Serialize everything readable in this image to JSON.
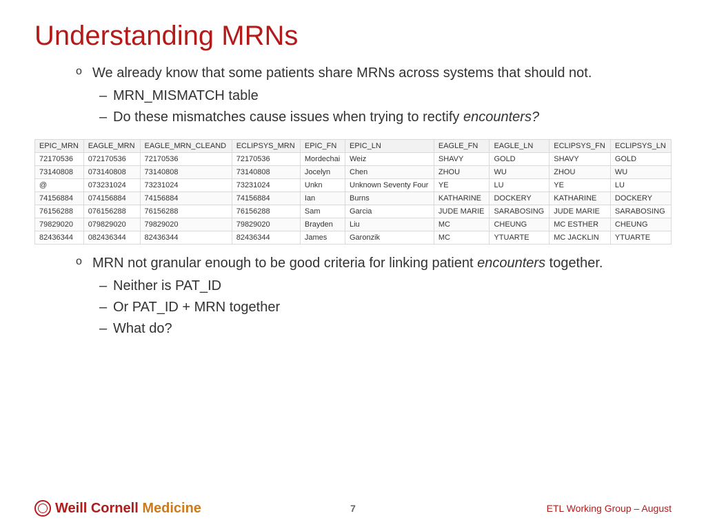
{
  "title": "Understanding MRNs",
  "bullets_top": {
    "main": "We already know that some patients share MRNs across systems that should not.",
    "sub1": "MRN_MISMATCH table",
    "sub2_pre": "Do these mismatches cause issues when trying to rectify ",
    "sub2_em": "encounters?"
  },
  "bullets_bottom": {
    "main_pre": "MRN not granular enough to be good criteria for linking patient ",
    "main_em": "encounters",
    "main_post": " together.",
    "sub1": "Neither is PAT_ID",
    "sub2": "Or PAT_ID + MRN together",
    "sub3": "What do?"
  },
  "table": {
    "columns": [
      "EPIC_MRN",
      "EAGLE_MRN",
      "EAGLE_MRN_CLEAND",
      "ECLIPSYS_MRN",
      "EPIC_FN",
      "EPIC_LN",
      "EAGLE_FN",
      "EAGLE_LN",
      "ECLIPSYS_FN",
      "ECLIPSYS_LN"
    ],
    "rows": [
      [
        "72170536",
        "072170536",
        "72170536",
        "72170536",
        "Mordechai",
        "Weiz",
        "SHAVY",
        "GOLD",
        "SHAVY",
        "GOLD"
      ],
      [
        "73140808",
        "073140808",
        "73140808",
        "73140808",
        "Jocelyn",
        "Chen",
        "ZHOU",
        "WU",
        "ZHOU",
        "WU"
      ],
      [
        "@",
        "073231024",
        "73231024",
        "73231024",
        "Unkn",
        "Unknown Seventy Four",
        "YE",
        "LU",
        "YE",
        "LU"
      ],
      [
        "74156884",
        "074156884",
        "74156884",
        "74156884",
        "Ian",
        "Burns",
        "KATHARINE",
        "DOCKERY",
        "KATHARINE",
        "DOCKERY"
      ],
      [
        "76156288",
        "076156288",
        "76156288",
        "76156288",
        "Sam",
        "Garcia",
        "JUDE MARIE",
        "SARABOSING",
        "JUDE MARIE",
        "SARABOSING"
      ],
      [
        "79829020",
        "079829020",
        "79829020",
        "79829020",
        "Brayden",
        "Liu",
        "MC",
        "CHEUNG",
        "MC ESTHER",
        "CHEUNG"
      ],
      [
        "82436344",
        "082436344",
        "82436344",
        "82436344",
        "James",
        "Garonzik",
        "MC",
        "YTUARTE",
        "MC JACKLIN",
        "YTUARTE"
      ]
    ]
  },
  "footer": {
    "logo_weill": "Weill Cornell ",
    "logo_med": "Medicine",
    "page": "7",
    "right": "ETL Working Group – August"
  }
}
